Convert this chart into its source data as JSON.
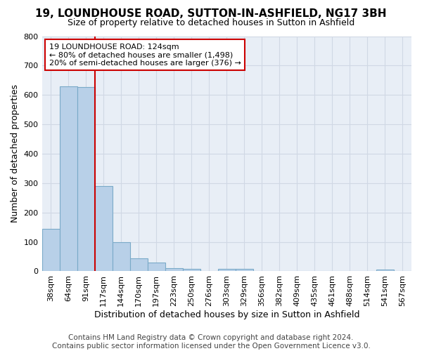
{
  "title": "19, LOUNDHOUSE ROAD, SUTTON-IN-ASHFIELD, NG17 3BH",
  "subtitle": "Size of property relative to detached houses in Sutton in Ashfield",
  "xlabel": "Distribution of detached houses by size in Sutton in Ashfield",
  "ylabel": "Number of detached properties",
  "categories": [
    "38sqm",
    "64sqm",
    "91sqm",
    "117sqm",
    "144sqm",
    "170sqm",
    "197sqm",
    "223sqm",
    "250sqm",
    "276sqm",
    "303sqm",
    "329sqm",
    "356sqm",
    "382sqm",
    "409sqm",
    "435sqm",
    "461sqm",
    "488sqm",
    "514sqm",
    "541sqm",
    "567sqm"
  ],
  "values": [
    145,
    630,
    628,
    290,
    100,
    45,
    30,
    10,
    8,
    0,
    8,
    8,
    0,
    0,
    0,
    0,
    0,
    0,
    0,
    5,
    0
  ],
  "bar_color": "#b8d0e8",
  "bar_edge_color": "#7aaac8",
  "vline_x_index": 2.5,
  "vline_color": "#cc0000",
  "annotation_text": "19 LOUNDHOUSE ROAD: 124sqm\n← 80% of detached houses are smaller (1,498)\n20% of semi-detached houses are larger (376) →",
  "annotation_box_color": "#ffffff",
  "annotation_box_edge_color": "#cc0000",
  "ylim": [
    0,
    800
  ],
  "yticks": [
    0,
    100,
    200,
    300,
    400,
    500,
    600,
    700,
    800
  ],
  "grid_color": "#d0d8e4",
  "bg_color": "#e8eef6",
  "footer": "Contains HM Land Registry data © Crown copyright and database right 2024.\nContains public sector information licensed under the Open Government Licence v3.0.",
  "title_fontsize": 11,
  "subtitle_fontsize": 9,
  "footer_fontsize": 7.5,
  "axis_label_fontsize": 9,
  "tick_fontsize": 8
}
